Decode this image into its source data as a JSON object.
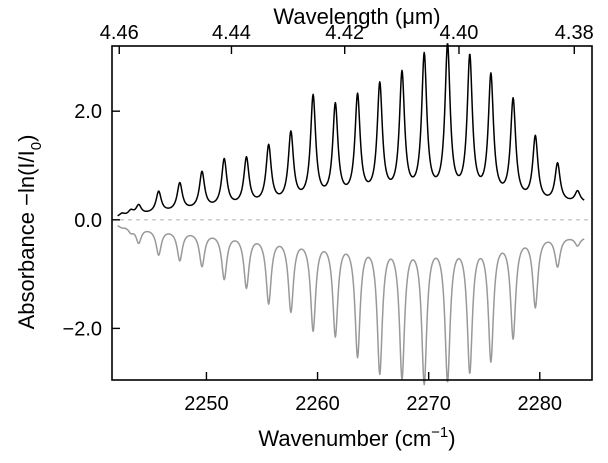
{
  "chart_data": {
    "type": "line",
    "title": "",
    "xlabel": "Wavenumber",
    "xlabel_unit_base": "cm",
    "xlabel_unit_sup": "−1",
    "ylabel_text": "Absorbance −ln(I/I",
    "ylabel_sub": "0",
    "ylabel_close": ")",
    "top_axis_label": "Wavelength (μm)",
    "xlim": [
      2241.5,
      2284.7
    ],
    "ylim": [
      -2.95,
      3.2
    ],
    "x_ticks": [
      {
        "value": 2250,
        "label": "2250"
      },
      {
        "value": 2260,
        "label": "2260"
      },
      {
        "value": 2270,
        "label": "2270"
      },
      {
        "value": 2280,
        "label": "2280"
      }
    ],
    "y_ticks": [
      {
        "value": 2.0,
        "label": "2.0"
      },
      {
        "value": 0.0,
        "label": "0.0"
      },
      {
        "value": -2.0,
        "label": "−2.0"
      }
    ],
    "top_ticks": [
      {
        "value": 4.46,
        "label": "4.46"
      },
      {
        "value": 4.44,
        "label": "4.44"
      },
      {
        "value": 4.42,
        "label": "4.42"
      },
      {
        "value": 4.4,
        "label": "4.40"
      },
      {
        "value": 4.38,
        "label": "4.38"
      }
    ],
    "zero_line": {
      "value": 0,
      "style": "dashed",
      "color": "#bbbbbb"
    },
    "series": [
      {
        "color": "#000000",
        "baseline": [
          [
            2242,
            0.04
          ],
          [
            2245,
            0.1
          ],
          [
            2250,
            0.18
          ],
          [
            2255,
            0.25
          ],
          [
            2260,
            0.3
          ],
          [
            2265,
            0.36
          ],
          [
            2270,
            0.38
          ],
          [
            2275,
            0.35
          ],
          [
            2280,
            0.28
          ],
          [
            2284,
            0.3
          ]
        ],
        "peaks": [
          [
            2242.4,
            0.1
          ],
          [
            2243.2,
            0.15
          ],
          [
            2243.9,
            0.25
          ],
          [
            2245.7,
            0.5
          ],
          [
            2247.6,
            0.65
          ],
          [
            2249.6,
            0.85
          ],
          [
            2251.6,
            1.08
          ],
          [
            2253.6,
            1.1
          ],
          [
            2255.6,
            1.32
          ],
          [
            2257.6,
            1.55
          ],
          [
            2259.6,
            2.22
          ],
          [
            2261.6,
            2.05
          ],
          [
            2263.6,
            2.22
          ],
          [
            2265.6,
            2.42
          ],
          [
            2267.6,
            2.62
          ],
          [
            2269.6,
            2.95
          ],
          [
            2271.7,
            3.12
          ],
          [
            2273.7,
            2.92
          ],
          [
            2275.6,
            2.58
          ],
          [
            2277.6,
            2.15
          ],
          [
            2279.6,
            1.48
          ],
          [
            2281.6,
            1.0
          ],
          [
            2283.4,
            0.5
          ]
        ]
      },
      {
        "color": "#999999",
        "baseline": [
          [
            2242,
            -0.08
          ],
          [
            2245,
            -0.14
          ],
          [
            2250,
            -0.2
          ],
          [
            2255,
            -0.25
          ],
          [
            2260,
            -0.28
          ],
          [
            2265,
            -0.3
          ],
          [
            2270,
            -0.3
          ],
          [
            2275,
            -0.28
          ],
          [
            2280,
            -0.24
          ],
          [
            2284,
            -0.3
          ]
        ],
        "peaks": [
          [
            2242.4,
            -0.12
          ],
          [
            2243.2,
            -0.2
          ],
          [
            2243.9,
            -0.4
          ],
          [
            2245.7,
            -0.62
          ],
          [
            2247.6,
            -0.72
          ],
          [
            2249.6,
            -0.82
          ],
          [
            2251.6,
            -1.05
          ],
          [
            2253.6,
            -1.2
          ],
          [
            2255.6,
            -1.48
          ],
          [
            2257.6,
            -1.62
          ],
          [
            2259.6,
            -1.96
          ],
          [
            2261.6,
            -2.05
          ],
          [
            2263.6,
            -2.42
          ],
          [
            2265.6,
            -2.72
          ],
          [
            2267.6,
            -2.8
          ],
          [
            2269.6,
            -2.9
          ],
          [
            2271.7,
            -2.86
          ],
          [
            2273.7,
            -2.7
          ],
          [
            2275.6,
            -2.5
          ],
          [
            2277.6,
            -2.1
          ],
          [
            2279.6,
            -1.55
          ],
          [
            2281.6,
            -0.82
          ],
          [
            2283.4,
            -0.45
          ]
        ]
      }
    ]
  }
}
